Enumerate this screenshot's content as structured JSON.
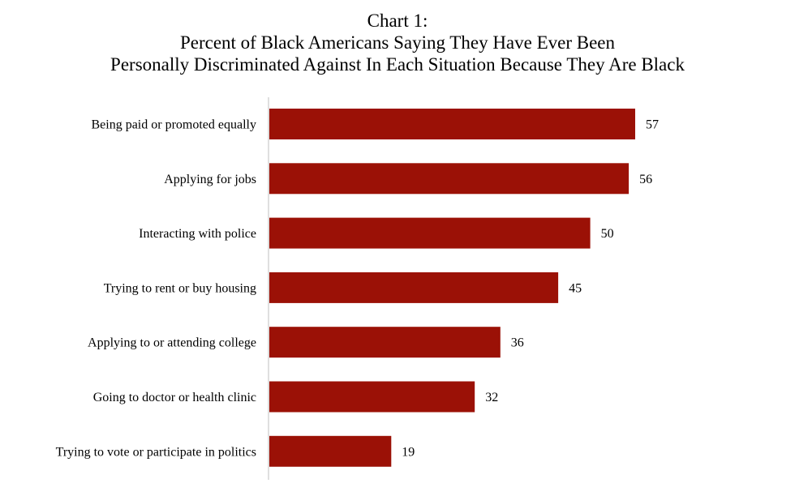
{
  "title_lines": [
    "Chart 1:",
    "Percent of Black Americans Saying They Have Ever Been",
    "Personally Discriminated Against In Each Situation Because They Are Black"
  ],
  "colors": {
    "bar": "#9B1106",
    "axis": "#BFBFBF",
    "text": "#000000"
  },
  "chart_data": {
    "type": "bar",
    "orientation": "horizontal",
    "title": "Chart 1: Percent of Black Americans Saying They Have Ever Been Personally Discriminated Against In Each Situation Because They Are Black",
    "categories": [
      "Being paid or promoted equally",
      "Applying for jobs",
      "Interacting with police",
      "Trying to rent or buy housing",
      "Applying to or attending college",
      "Going to doctor or health clinic",
      "Trying to vote or participate in politics"
    ],
    "values": [
      57,
      56,
      50,
      45,
      36,
      32,
      19
    ],
    "value_labels": [
      "57",
      "56",
      "50",
      "45",
      "36",
      "32",
      "19"
    ],
    "xlim": [
      0,
      60
    ],
    "xlabel": "",
    "ylabel": "",
    "grid": false,
    "legend": "none"
  }
}
